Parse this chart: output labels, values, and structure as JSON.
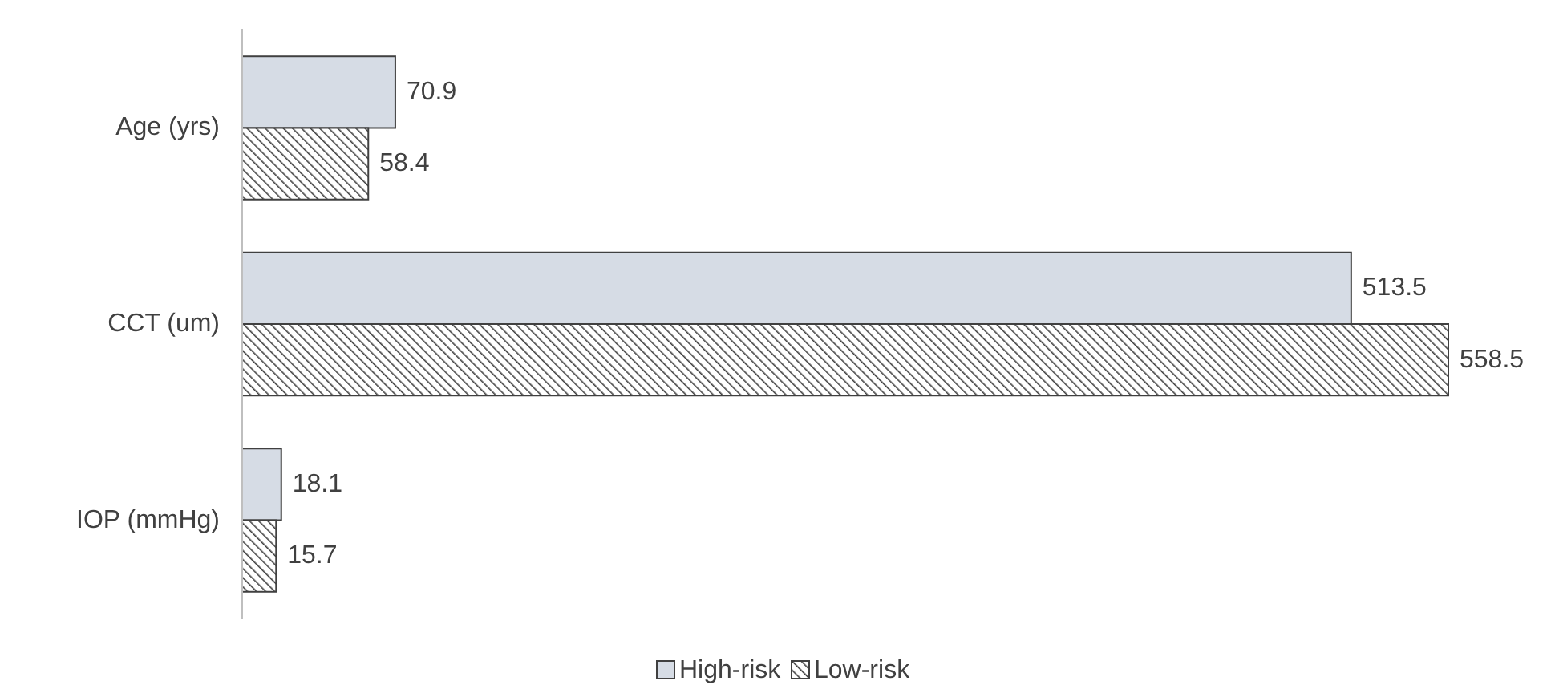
{
  "chart_data": {
    "type": "bar",
    "orientation": "horizontal",
    "categories": [
      "Age (yrs)",
      "CCT (um)",
      "IOP (mmHg)"
    ],
    "series": [
      {
        "name": "High-risk",
        "color": "#d6dce5",
        "values": [
          70.9,
          513.5,
          18.1
        ]
      },
      {
        "name": "Low-risk",
        "color": "#404040",
        "values": [
          58.4,
          558.5,
          15.7
        ]
      }
    ],
    "data_labels": true,
    "legend": "bottom",
    "grid": false
  }
}
